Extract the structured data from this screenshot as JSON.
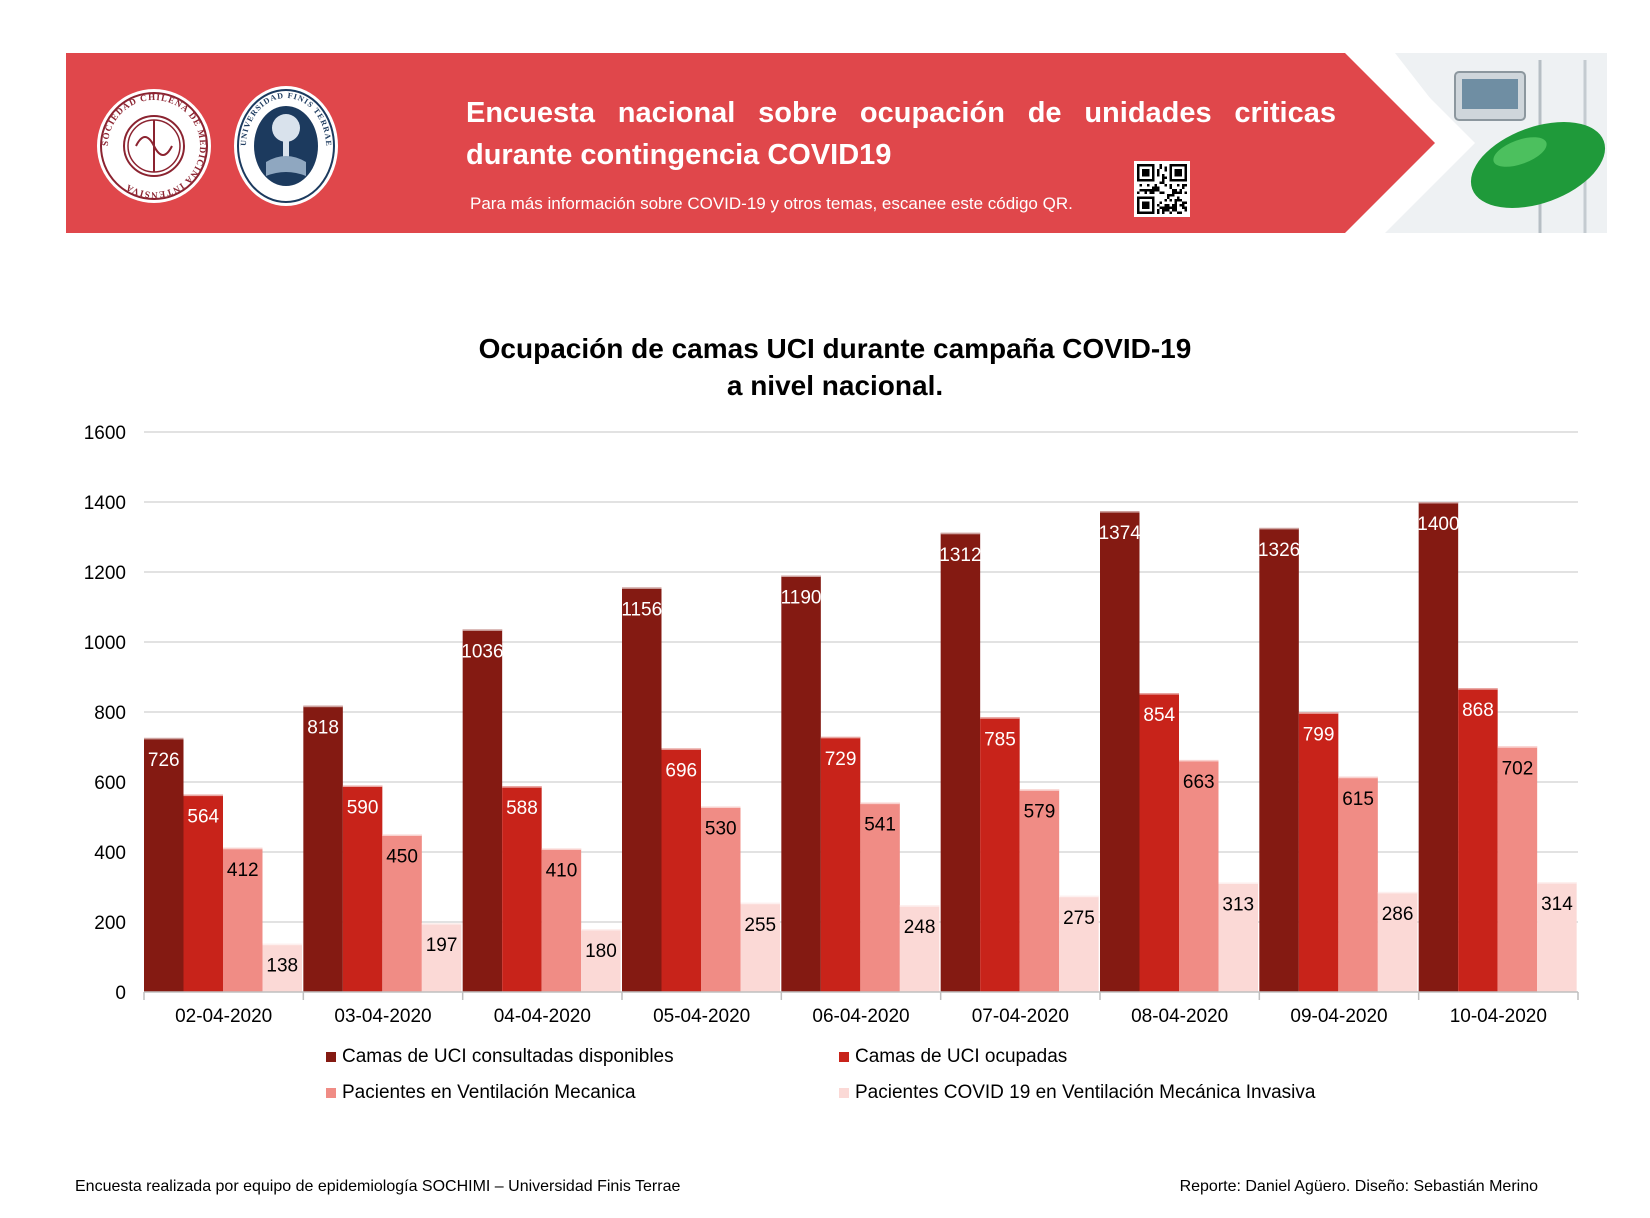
{
  "banner": {
    "title": "Encuesta nacional sobre ocupación de unidades criticas durante contingencia COVID19",
    "subtitle": "Para más información sobre COVID-19 y otros temas, escanee este código QR.",
    "logo1_text": "SOCIEDAD CHILENA DE MEDICINA INTENSIVA",
    "logo2_text": "UNIVERSIDAD FINIS TERRAE",
    "colors": {
      "banner_bg": "#e0474b",
      "accent": "#ffffff"
    }
  },
  "chart_data": {
    "type": "bar",
    "title_line1": "Ocupación de camas UCI durante campaña COVID-19",
    "title_line2": "a nivel nacional.",
    "categories": [
      "02-04-2020",
      "03-04-2020",
      "04-04-2020",
      "05-04-2020",
      "06-04-2020",
      "07-04-2020",
      "08-04-2020",
      "09-04-2020",
      "10-04-2020"
    ],
    "series": [
      {
        "name": "Camas de UCI consultadas disponibles",
        "color": "#841a12",
        "label_color": "#ffffff",
        "values": [
          726,
          818,
          1036,
          1156,
          1190,
          1312,
          1374,
          1326,
          1400
        ]
      },
      {
        "name": "Camas de UCI ocupadas",
        "color": "#c8231a",
        "label_color": "#ffffff",
        "values": [
          564,
          590,
          588,
          696,
          729,
          785,
          854,
          799,
          868
        ]
      },
      {
        "name": "Pacientes en Ventilación Mecanica",
        "color": "#f08c85",
        "label_color": "#000000",
        "values": [
          412,
          450,
          410,
          530,
          541,
          579,
          663,
          615,
          702
        ]
      },
      {
        "name": "Pacientes COVID 19 en Ventilación Mecánica Invasiva",
        "color": "#fbd9d6",
        "label_color": "#000000",
        "values": [
          138,
          197,
          180,
          255,
          248,
          275,
          313,
          286,
          314
        ]
      }
    ],
    "yticks": [
      0,
      200,
      400,
      600,
      800,
      1000,
      1200,
      1400,
      1600
    ],
    "ylim": [
      0,
      1600
    ],
    "grid": true,
    "legend": "bottom"
  },
  "footer": {
    "left": "Encuesta realizada por equipo de epidemiología SOCHIMI – Universidad Finis Terrae",
    "right": "Reporte: Daniel Agüero. Diseño: Sebastián Merino"
  }
}
